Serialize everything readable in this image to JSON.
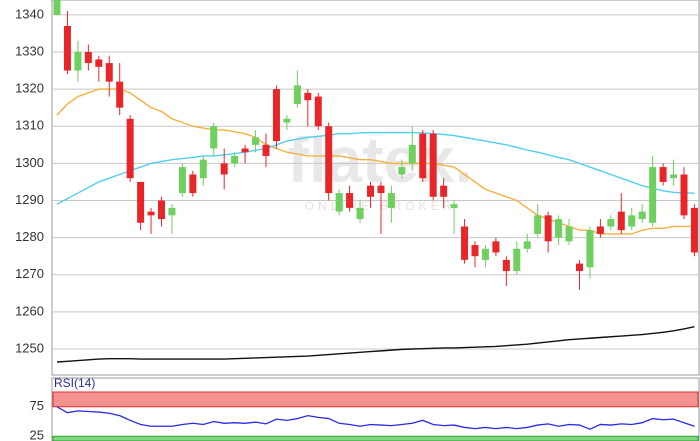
{
  "chart_data": [
    {
      "type": "candlestick",
      "watermark": "flatex.",
      "watermark_subtitle": "ONLINE BROKER",
      "up_color": "#6fcf5f",
      "down_color": "#e8262a",
      "open": [
        1340,
        1337,
        1325,
        1330,
        1328,
        1327,
        1322,
        1312,
        1295,
        1287,
        1290,
        1286,
        1292,
        1297,
        1296,
        1304,
        1300,
        1300,
        1304,
        1305,
        1305,
        1320,
        1311,
        1316,
        1319,
        1318,
        1310,
        1287,
        1292,
        1285,
        1294,
        1294,
        1288,
        1297,
        1300,
        1308,
        1308,
        1294,
        1288,
        1283,
        1278,
        1274,
        1279,
        1274,
        1271,
        1277,
        1281,
        1286,
        1280,
        1279,
        1273,
        1272,
        1283,
        1283,
        1287,
        1283,
        1285,
        1284,
        1299,
        1296,
        1297,
        1288
      ],
      "high": [
        1344,
        1341,
        1333,
        1332,
        1329,
        1329,
        1327,
        1313,
        1295,
        1288,
        1291,
        1289,
        1300,
        1298,
        1302,
        1311,
        1304,
        1303,
        1305,
        1309,
        1308,
        1321,
        1313,
        1325,
        1320,
        1319,
        1311,
        1293,
        1294,
        1290,
        1295,
        1295,
        1294,
        1301,
        1310,
        1309,
        1309,
        1296,
        1290,
        1285,
        1279,
        1278,
        1280,
        1275,
        1279,
        1281,
        1289,
        1287,
        1286,
        1285,
        1274,
        1283,
        1285,
        1286,
        1292,
        1288,
        1289,
        1302,
        1300,
        1301,
        1299,
        1289
      ],
      "low": [
        1340,
        1324,
        1322,
        1325,
        1322,
        1318,
        1313,
        1295,
        1282,
        1281,
        1283,
        1281,
        1291,
        1291,
        1294,
        1302,
        1293,
        1299,
        1300,
        1303,
        1299,
        1304,
        1309,
        1315,
        1310,
        1309,
        1290,
        1286,
        1287,
        1284,
        1288,
        1281,
        1284,
        1296,
        1298,
        1295,
        1290,
        1288,
        1281,
        1273,
        1272,
        1272,
        1275,
        1267,
        1270,
        1276,
        1280,
        1276,
        1278,
        1278,
        1266,
        1269,
        1280,
        1282,
        1281,
        1282,
        1284,
        1283,
        1294,
        1294,
        1285,
        1275
      ],
      "close": [
        1344,
        1325,
        1330,
        1327,
        1326,
        1322,
        1315,
        1296,
        1284,
        1286,
        1285,
        1288,
        1299,
        1292,
        1301,
        1310,
        1297,
        1302,
        1303,
        1307,
        1302,
        1306,
        1312,
        1321,
        1317,
        1310,
        1292,
        1292,
        1288,
        1288,
        1291,
        1292,
        1292,
        1299,
        1305,
        1296,
        1291,
        1291,
        1289,
        1274,
        1275,
        1277,
        1276,
        1271,
        1277,
        1279,
        1286,
        1279,
        1285,
        1283,
        1271,
        1282,
        1281,
        1285,
        1282,
        1286,
        1287,
        1299,
        1295,
        1297,
        1286,
        1276
      ],
      "series": [
        {
          "color": "#f5b040",
          "values": [
            1313,
            1316,
            1318,
            1319,
            1320,
            1320,
            1320,
            1319,
            1317,
            1315,
            1314,
            1312,
            1311,
            1310,
            1309.5,
            1309,
            1309,
            1308.5,
            1308,
            1307,
            1305,
            1304,
            1303,
            1302.5,
            1302,
            1302,
            1302,
            1302,
            1301.5,
            1301,
            1301,
            1300.5,
            1300,
            1300,
            1300,
            1300,
            1300,
            1299.5,
            1299,
            1297,
            1295,
            1293,
            1292,
            1291,
            1290,
            1288,
            1286,
            1285,
            1284,
            1283,
            1282,
            1282,
            1281,
            1281,
            1281,
            1281,
            1282,
            1282.5,
            1282.5,
            1283,
            1283,
            1283
          ]
        },
        {
          "color": "#4fd0ee",
          "values": [
            1289,
            1290.5,
            1292,
            1293.5,
            1295,
            1296,
            1297,
            1298,
            1299,
            1300,
            1300.5,
            1301,
            1301.3,
            1301.6,
            1302,
            1302,
            1302.3,
            1302.6,
            1303,
            1303.5,
            1304,
            1305,
            1306,
            1306.5,
            1307,
            1307.3,
            1307.6,
            1308,
            1308,
            1308.2,
            1308.3,
            1308.3,
            1308.3,
            1308.3,
            1308.3,
            1308.2,
            1308,
            1307.8,
            1307.5,
            1307,
            1306.5,
            1306,
            1305.5,
            1305,
            1304.3,
            1303.6,
            1303,
            1302.3,
            1301.6,
            1301,
            1300,
            1299,
            1298,
            1297,
            1296,
            1295,
            1294,
            1293.3,
            1292.6,
            1292.2,
            1292,
            1292
          ]
        },
        {
          "color": "#111111",
          "values": [
            1246.5,
            1246.7,
            1246.9,
            1247.1,
            1247.3,
            1247.4,
            1247.4,
            1247.4,
            1247.3,
            1247.3,
            1247.3,
            1247.3,
            1247.3,
            1247.3,
            1247.3,
            1247.3,
            1247.3,
            1247.4,
            1247.5,
            1247.6,
            1247.7,
            1247.8,
            1247.9,
            1248,
            1248.1,
            1248.3,
            1248.5,
            1248.7,
            1248.9,
            1249.1,
            1249.3,
            1249.5,
            1249.7,
            1249.9,
            1250,
            1250.1,
            1250.2,
            1250.3,
            1250.3,
            1250.4,
            1250.5,
            1250.6,
            1250.7,
            1250.9,
            1251.1,
            1251.3,
            1251.6,
            1251.9,
            1252.2,
            1252.5,
            1252.7,
            1252.9,
            1253.1,
            1253.3,
            1253.5,
            1253.7,
            1253.9,
            1254.2,
            1254.5,
            1254.9,
            1255.4,
            1256
          ]
        }
      ],
      "ylim": [
        1243,
        1344
      ],
      "yticks": [
        1250,
        1260,
        1270,
        1280,
        1290,
        1300,
        1310,
        1320,
        1330,
        1340
      ],
      "grid": true
    },
    {
      "type": "line",
      "title": "RSI(14)",
      "color": "#2a2ae8",
      "upper_band_color": "#f49090",
      "lower_band_color": "#7fd77f",
      "values": [
        75,
        65,
        68,
        67,
        66,
        64,
        60,
        52,
        45,
        42,
        42,
        42,
        45,
        47,
        45,
        50,
        47,
        48,
        47,
        49,
        46,
        54,
        52,
        55,
        60,
        57,
        55,
        47,
        45,
        42,
        45,
        44,
        43,
        45,
        47,
        52,
        45,
        43,
        44,
        40,
        38,
        40,
        38,
        40,
        38,
        40,
        44,
        46,
        42,
        45,
        44,
        37,
        45,
        44,
        46,
        45,
        48,
        55,
        53,
        54,
        48,
        42
      ],
      "ylim": [
        17,
        100
      ],
      "yticks": [
        25,
        75
      ]
    }
  ]
}
